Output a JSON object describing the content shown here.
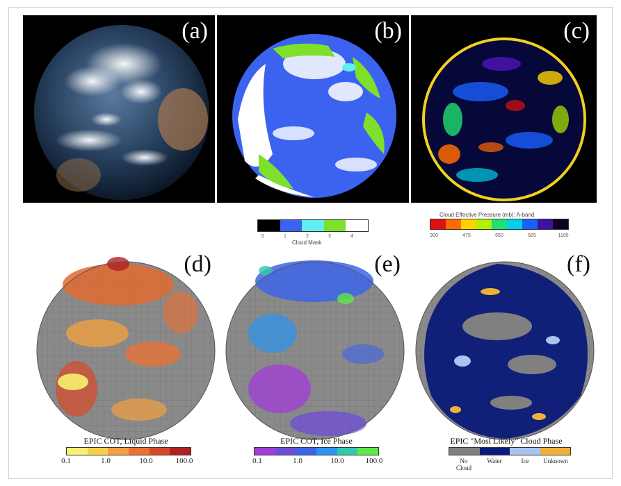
{
  "panels": {
    "a": {
      "label": "(a)"
    },
    "b": {
      "label": "(b)"
    },
    "c": {
      "label": "(c)"
    },
    "d": {
      "label": "(d)"
    },
    "e": {
      "label": "(e)"
    },
    "f": {
      "label": "(f)"
    }
  },
  "colorbars": {
    "cloud_mask": {
      "title": "Cloud Mask",
      "colors": [
        "#000000",
        "#3b63f0",
        "#5ef0f0",
        "#7ee02a",
        "#ffffff"
      ],
      "ticks": [
        "0",
        "1",
        "2",
        "3",
        "4"
      ]
    },
    "pressure": {
      "title": "Cloud Effective Pressure (mb): A-band",
      "colors": [
        "#e01010",
        "#ff6a00",
        "#ffd200",
        "#b0f000",
        "#20e070",
        "#00d0e8",
        "#1860ff",
        "#4010a0",
        "#100020"
      ],
      "ticks": [
        "300",
        "475",
        "650",
        "825",
        "1100"
      ]
    },
    "cot_liquid": {
      "title": "EPIC COT, Liquid Phase",
      "colors": [
        "#f8f070",
        "#f8d048",
        "#f4a040",
        "#ee7030",
        "#d84828",
        "#b02020"
      ],
      "ticks": [
        "0.1",
        "1.0",
        "10.0",
        "100.0"
      ]
    },
    "cot_ice": {
      "title": "EPIC COT, Ice Phase",
      "colors": [
        "#a23cd8",
        "#6e4cd8",
        "#3c64e8",
        "#2c94f0",
        "#30c8b0",
        "#60e848"
      ],
      "ticks": [
        "0.1",
        "1.0",
        "10.0",
        "100.0"
      ]
    },
    "phase": {
      "title": "EPIC \"Most Likely\" Cloud Phase",
      "colors": [
        "#808080",
        "#0a1a78",
        "#a8c4f0",
        "#f0b038"
      ],
      "ticks": [
        "No Cloud",
        "Water",
        "Ice",
        "Unknown"
      ]
    }
  }
}
